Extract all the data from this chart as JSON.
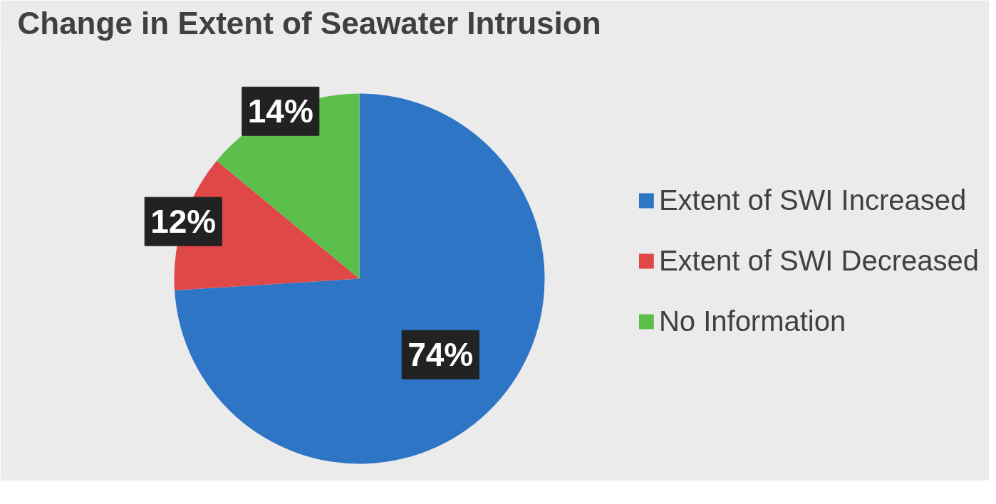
{
  "chart_data": {
    "type": "pie",
    "title": "Change in Extent of Seawater Intrusion",
    "categories": [
      "Extent of SWI Increased",
      "Extent of SWI Decreased",
      "No Information"
    ],
    "values": [
      74,
      12,
      14
    ],
    "colors": [
      "#2e75c6",
      "#e04848",
      "#5cbf4c"
    ],
    "value_labels": [
      "74%",
      "12%",
      "14%"
    ],
    "legend": "right"
  }
}
